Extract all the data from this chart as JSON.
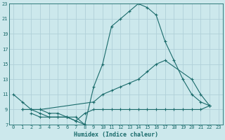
{
  "xlabel": "Humidex (Indice chaleur)",
  "bg_color": "#cce8ec",
  "grid_color": "#b0d0d8",
  "line_color": "#1a6b6b",
  "xlim": [
    -0.5,
    23.5
  ],
  "ylim": [
    7,
    23
  ],
  "xticks": [
    0,
    1,
    2,
    3,
    4,
    5,
    6,
    7,
    8,
    9,
    10,
    11,
    12,
    13,
    14,
    15,
    16,
    17,
    18,
    19,
    20,
    21,
    22,
    23
  ],
  "yticks": [
    7,
    9,
    11,
    13,
    15,
    17,
    19,
    21,
    23
  ],
  "lines": [
    {
      "x": [
        0,
        1,
        2,
        3,
        4,
        5,
        6,
        7,
        8,
        9,
        10,
        11,
        12,
        13,
        14,
        15,
        16,
        17,
        18,
        19,
        20,
        21,
        22
      ],
      "y": [
        11,
        10,
        9,
        9,
        8.5,
        8.5,
        8,
        8,
        7,
        12,
        15,
        20,
        21,
        22,
        23,
        22.5,
        21.5,
        18,
        15.5,
        13,
        11,
        10,
        9.5
      ]
    },
    {
      "x": [
        1,
        2,
        3,
        9,
        10,
        11,
        12,
        13,
        14,
        15,
        16,
        17,
        20,
        21,
        22
      ],
      "y": [
        9,
        9,
        9,
        10,
        11,
        11.5,
        12,
        12.5,
        13,
        14,
        15,
        15.5,
        13,
        11,
        9.5
      ]
    },
    {
      "x": [
        1,
        2,
        3,
        4,
        5,
        6,
        7,
        8,
        9,
        10,
        11,
        12,
        13,
        14,
        15,
        16,
        17,
        18,
        19,
        20,
        21,
        22
      ],
      "y": [
        9,
        9,
        8.5,
        8,
        8,
        8,
        7.5,
        8.5,
        9,
        9,
        9,
        9,
        9,
        9,
        9,
        9,
        9,
        9,
        9,
        9,
        9,
        9.5
      ]
    },
    {
      "x": [
        2,
        3,
        4,
        5,
        6,
        7,
        8
      ],
      "y": [
        8.5,
        8,
        8,
        8,
        8,
        7.5,
        7
      ]
    }
  ]
}
